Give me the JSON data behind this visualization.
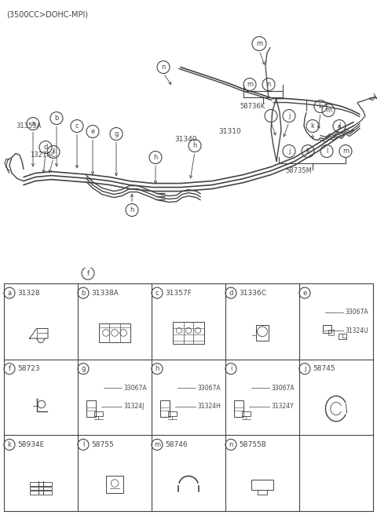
{
  "title": "(3500CC>DOHC-MPI)",
  "bg_color": "#ffffff",
  "lc": "#444444",
  "fig_width": 4.8,
  "fig_height": 6.56,
  "dpi": 100,
  "cells": [
    {
      "row": 0,
      "col": 0,
      "label": "a",
      "part": "31328",
      "sub1": null,
      "sub2": null
    },
    {
      "row": 0,
      "col": 1,
      "label": "b",
      "part": "31338A",
      "sub1": null,
      "sub2": null
    },
    {
      "row": 0,
      "col": 2,
      "label": "c",
      "part": "31357F",
      "sub1": null,
      "sub2": null
    },
    {
      "row": 0,
      "col": 3,
      "label": "d",
      "part": "31336C",
      "sub1": null,
      "sub2": null
    },
    {
      "row": 0,
      "col": 4,
      "label": "e",
      "part": "",
      "sub1": "33067A",
      "sub2": "31324U"
    },
    {
      "row": 1,
      "col": 0,
      "label": "f",
      "part": "58723",
      "sub1": null,
      "sub2": null
    },
    {
      "row": 1,
      "col": 1,
      "label": "g",
      "part": "",
      "sub1": "33067A",
      "sub2": "31324J"
    },
    {
      "row": 1,
      "col": 2,
      "label": "h",
      "part": "",
      "sub1": "33067A",
      "sub2": "31324H"
    },
    {
      "row": 1,
      "col": 3,
      "label": "i",
      "part": "",
      "sub1": "33067A",
      "sub2": "31324Y"
    },
    {
      "row": 1,
      "col": 4,
      "label": "j",
      "part": "58745",
      "sub1": null,
      "sub2": null
    },
    {
      "row": 2,
      "col": 0,
      "label": "k",
      "part": "58934E",
      "sub1": null,
      "sub2": null
    },
    {
      "row": 2,
      "col": 1,
      "label": "l",
      "part": "58755",
      "sub1": null,
      "sub2": null
    },
    {
      "row": 2,
      "col": 2,
      "label": "m",
      "part": "58746",
      "sub1": null,
      "sub2": null
    },
    {
      "row": 2,
      "col": 3,
      "label": "n",
      "part": "58755B",
      "sub1": null,
      "sub2": null
    },
    {
      "row": 2,
      "col": 4,
      "label": "",
      "part": "",
      "sub1": null,
      "sub2": null
    }
  ]
}
